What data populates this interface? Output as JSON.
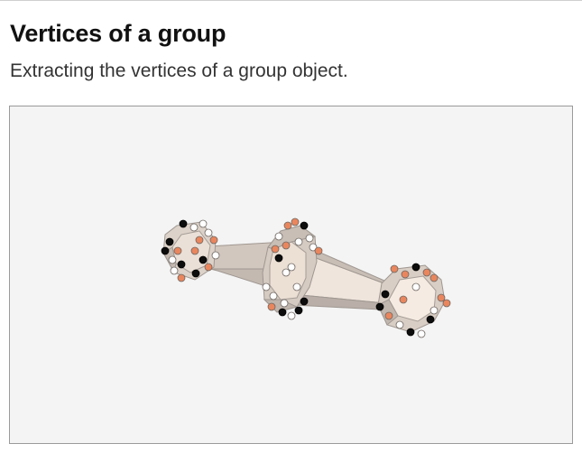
{
  "header": {
    "title": "Vertices of a group",
    "subtitle": "Extracting the vertices of a group object."
  },
  "scene": {
    "background": "#f4f4f4",
    "border": "#9a9a9a",
    "mesh_colors": {
      "face_light": "#f3e8df",
      "face_mid": "#d8cdc4",
      "face_dark": "#bdb4ad",
      "edge": "#9f9791"
    },
    "vertex_colors": {
      "black": "#0d0d0d",
      "white": "#ffffff",
      "salmon": "#e9865e"
    },
    "objects": [
      "left-dodecahedron",
      "middle-dodecahedron",
      "right-dodecahedron",
      "left-connector",
      "right-connector"
    ]
  }
}
